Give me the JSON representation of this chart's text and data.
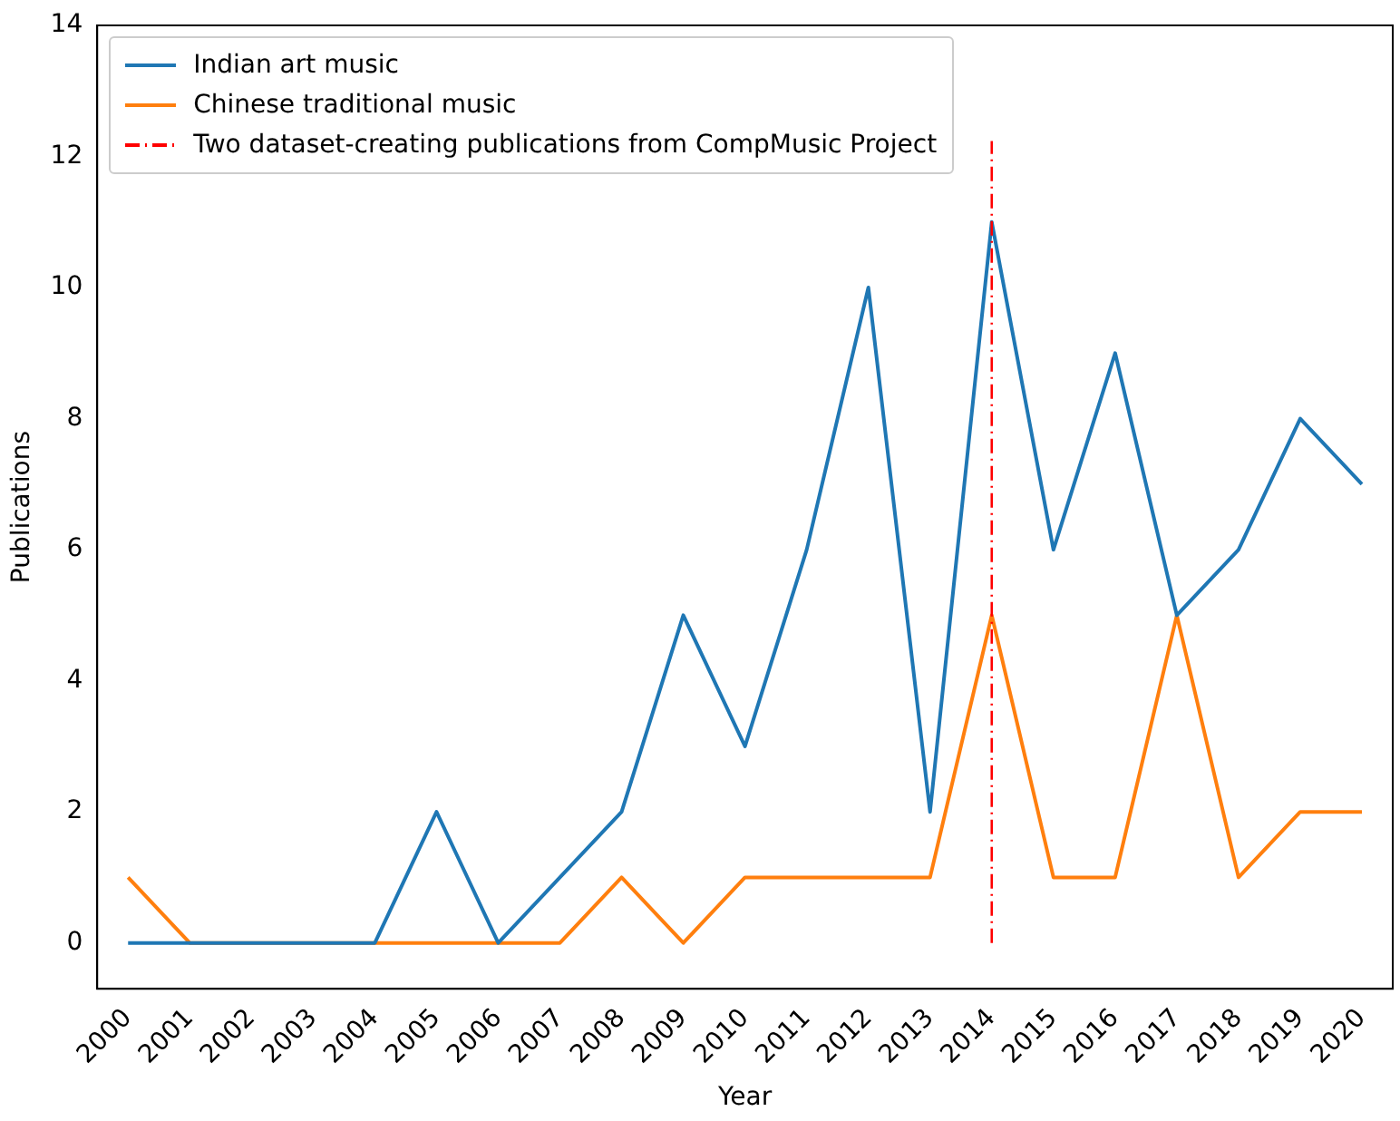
{
  "chart_data": {
    "type": "line",
    "xlabel": "Year",
    "ylabel": "Publications",
    "categories": [
      "2000",
      "2001",
      "2002",
      "2003",
      "2004",
      "2005",
      "2006",
      "2007",
      "2008",
      "2009",
      "2010",
      "2011",
      "2012",
      "2013",
      "2014",
      "2015",
      "2016",
      "2017",
      "2018",
      "2019",
      "2020"
    ],
    "series": [
      {
        "name": "Indian art music",
        "color": "#1f77b4",
        "values": [
          0,
          0,
          0,
          0,
          0,
          2,
          0,
          1,
          2,
          5,
          3,
          6,
          10,
          2,
          11,
          6,
          9,
          5,
          6,
          8,
          7
        ]
      },
      {
        "name": "Chinese traditional music",
        "color": "#ff7f0e",
        "values": [
          1,
          0,
          0,
          0,
          0,
          0,
          0,
          0,
          1,
          0,
          1,
          1,
          1,
          1,
          5,
          1,
          1,
          5,
          1,
          2,
          2
        ]
      }
    ],
    "ref_lines": [
      {
        "axis": "x",
        "value": "2014",
        "label": "Two dataset-creating publications from CompMusic Project",
        "color": "#ff0000",
        "line_style": "dashdot"
      }
    ],
    "ylim": [
      -0.7,
      14
    ],
    "yticks": [
      0,
      2,
      4,
      6,
      8,
      10,
      12,
      14
    ],
    "grid": false,
    "legend": "top left",
    "marker": "none",
    "line_style": "solid"
  }
}
